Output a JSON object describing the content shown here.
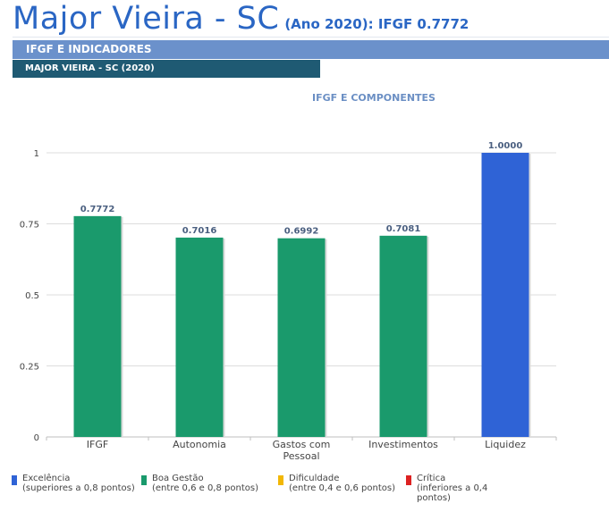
{
  "header": {
    "city": "Major Vieira - SC",
    "meta": "(Ano 2020): IFGF  0.7772",
    "section": "IFGF E INDICADORES",
    "subsection": "MAJOR VIEIRA - SC (2020)"
  },
  "colors": {
    "title": "#2a66c4",
    "section_bar": "#6b91cb",
    "sub_bar": "#1f5a73",
    "excelencia": "#2f63d6",
    "boa_gestao": "#1a9a6c",
    "dificuldade": "#f2b705",
    "critica": "#dd2222"
  },
  "chart_data": {
    "type": "bar",
    "title": "IFGF E COMPONENTES",
    "categories": [
      "IFGF",
      "Autonomia",
      "Gastos com Pessoal",
      "Investimentos",
      "Liquidez"
    ],
    "category_lines": [
      [
        "IFGF"
      ],
      [
        "Autonomia"
      ],
      [
        "Gastos com",
        "Pessoal"
      ],
      [
        "Investimentos"
      ],
      [
        "Liquidez"
      ]
    ],
    "values": [
      0.7772,
      0.7016,
      0.6992,
      0.7081,
      1.0
    ],
    "value_labels": [
      "0.7772",
      "0.7016",
      "0.6992",
      "0.7081",
      "1.0000"
    ],
    "bar_classes": [
      "boa_gestao",
      "boa_gestao",
      "boa_gestao",
      "boa_gestao",
      "excelencia"
    ],
    "ylim": [
      0,
      1
    ],
    "yticks": [
      0,
      0.25,
      0.5,
      0.75,
      1
    ],
    "ytick_labels": [
      "0",
      "0.25",
      "0.5",
      "0.75",
      "1"
    ],
    "grid": true,
    "legend_position": "bottom",
    "legend": [
      {
        "key": "excelencia",
        "name": "Excelência",
        "desc": "(superiores a 0,8 pontos)"
      },
      {
        "key": "boa_gestao",
        "name": "Boa Gestão",
        "desc": "(entre 0,6 e 0,8 pontos)"
      },
      {
        "key": "dificuldade",
        "name": "Dificuldade",
        "desc": "(entre 0,4 e 0,6 pontos)"
      },
      {
        "key": "critica",
        "name": "Crítica",
        "desc": "(inferiores a 0,4 pontos)"
      }
    ]
  }
}
